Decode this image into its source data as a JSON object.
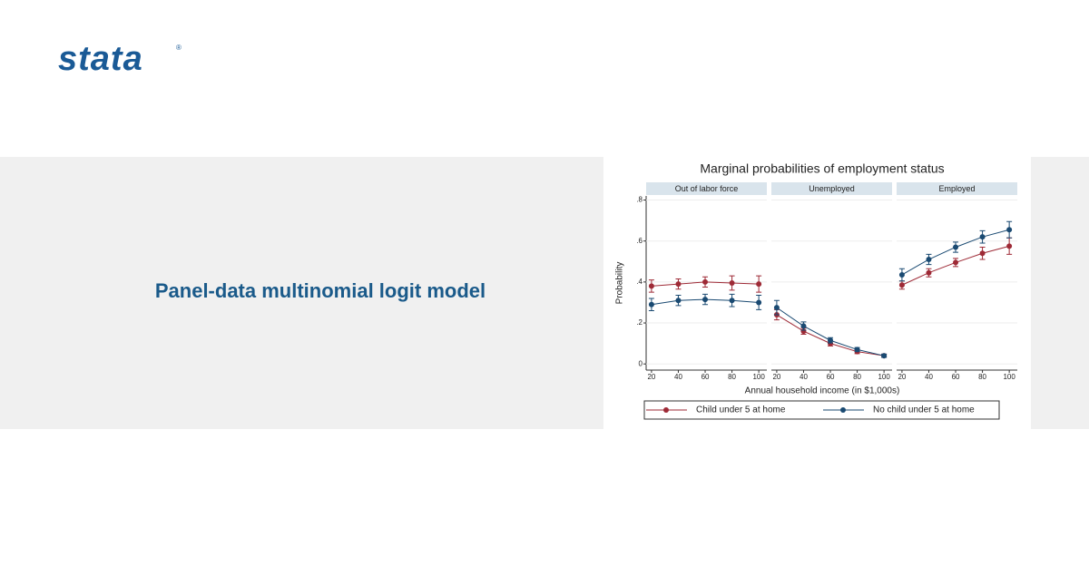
{
  "header": {
    "logo": "stata",
    "logo_mark": "®"
  },
  "banner": {
    "title": "Panel-data multinomial logit model"
  },
  "chart_data": {
    "type": "line",
    "title": "Marginal probabilities of employment status",
    "panels": [
      "Out of labor force",
      "Unemployed",
      "Employed"
    ],
    "x_label": "Annual household income (in $1,000s)",
    "y_label": "Probability",
    "x": [
      20,
      40,
      60,
      80,
      100
    ],
    "xlim": [
      16,
      106
    ],
    "xticks": [
      20,
      40,
      60,
      80,
      100
    ],
    "ylim": [
      -0.03,
      0.82
    ],
    "yticks": [
      0,
      {
        "value": 0.2,
        "label": ".2"
      },
      {
        "value": 0.4,
        "label": ".4"
      },
      {
        "value": 0.6,
        "label": ".6"
      },
      {
        "value": 0.8,
        "label": ".8"
      }
    ],
    "grid": true,
    "series": [
      {
        "name": "Child under 5 at home",
        "color": "#9e2a36",
        "values": [
          [
            0.38,
            0.39,
            0.4,
            0.395,
            0.39
          ],
          [
            0.24,
            0.16,
            0.1,
            0.06,
            0.04
          ],
          [
            0.385,
            0.445,
            0.495,
            0.54,
            0.575
          ]
        ],
        "errors": [
          [
            0.03,
            0.025,
            0.025,
            0.035,
            0.04
          ],
          [
            0.025,
            0.015,
            0.012,
            0.01,
            0.008
          ],
          [
            0.02,
            0.02,
            0.02,
            0.03,
            0.04
          ]
        ]
      },
      {
        "name": "No child under 5 at home",
        "color": "#1a4a72",
        "values": [
          [
            0.29,
            0.31,
            0.315,
            0.31,
            0.3
          ],
          [
            0.275,
            0.185,
            0.115,
            0.07,
            0.04
          ],
          [
            0.435,
            0.51,
            0.57,
            0.62,
            0.655
          ]
        ],
        "errors": [
          [
            0.03,
            0.025,
            0.025,
            0.03,
            0.035
          ],
          [
            0.035,
            0.02,
            0.013,
            0.01,
            0.008
          ],
          [
            0.03,
            0.025,
            0.025,
            0.03,
            0.04
          ]
        ]
      }
    ]
  }
}
